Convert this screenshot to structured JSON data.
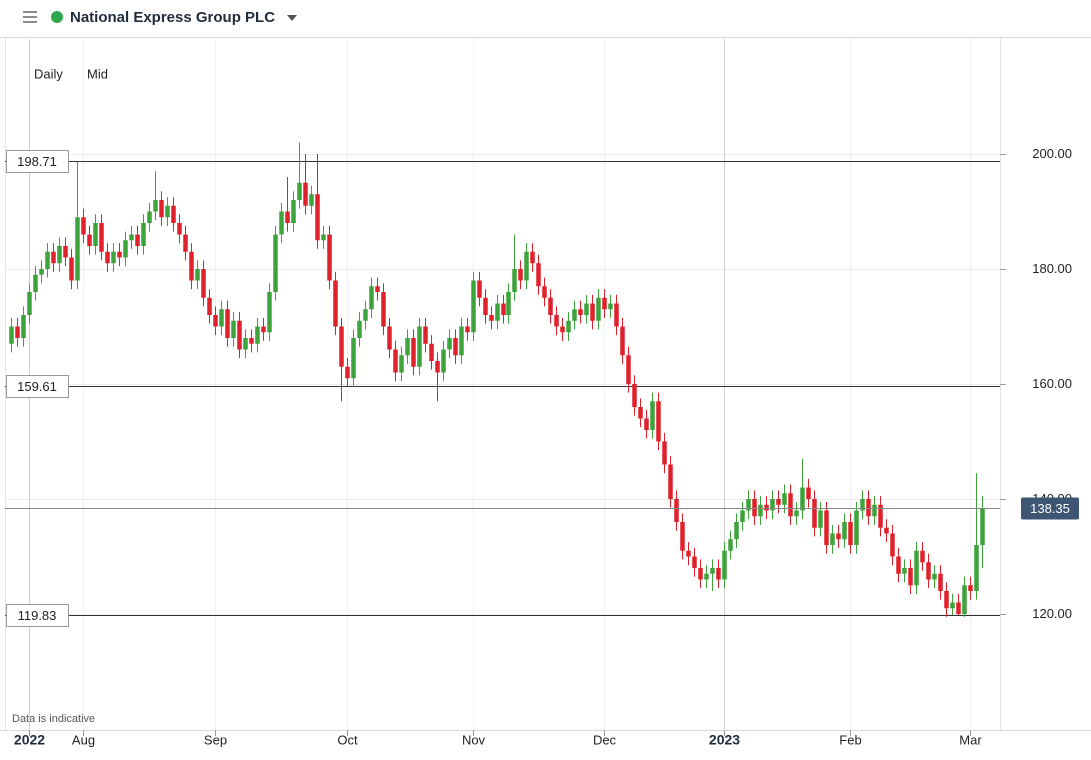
{
  "header": {
    "title": "National Express Group PLC",
    "interval": "Daily",
    "price_type": "Mid"
  },
  "footnote": "Data is indicative",
  "chart_data": {
    "type": "candlestick",
    "categories": [
      null,
      null,
      null,
      null,
      null,
      null,
      null,
      null,
      null,
      null,
      null,
      null,
      null,
      null,
      null,
      null,
      null,
      null,
      null,
      null,
      null,
      null,
      null,
      null,
      null,
      null,
      null,
      null,
      null,
      null,
      null,
      null,
      null,
      null,
      null,
      null,
      null,
      null,
      null,
      null,
      null,
      null,
      null,
      null,
      null,
      null,
      null,
      null,
      null,
      null,
      null,
      null,
      null,
      null,
      null,
      null,
      null,
      null,
      null,
      null,
      null,
      null,
      null,
      null,
      null,
      null,
      null,
      null,
      null,
      null,
      null,
      null,
      null,
      null,
      null,
      null,
      null,
      null,
      null,
      null,
      null,
      null,
      null,
      null,
      null,
      null,
      null,
      null,
      null,
      null,
      null,
      null,
      null,
      null,
      null,
      null,
      null,
      null,
      null,
      null,
      null,
      null,
      null,
      null,
      null,
      null,
      null,
      null,
      null,
      null,
      null,
      null,
      null,
      null,
      null,
      null,
      null,
      null,
      null,
      null,
      null,
      null,
      null,
      null,
      null,
      null,
      null,
      null,
      null,
      null,
      null,
      null,
      null,
      null,
      null,
      null,
      null,
      null,
      null,
      null,
      null,
      null,
      null,
      null,
      null,
      null,
      null,
      null,
      null,
      null,
      null,
      null,
      null,
      null,
      null,
      null,
      null,
      null,
      null,
      null,
      null,
      null,
      null
    ],
    "open": [
      167,
      170,
      168,
      172,
      176,
      179,
      180,
      183,
      181,
      184,
      182,
      178,
      189,
      186,
      184,
      188,
      183,
      181,
      183,
      182,
      185,
      186,
      184,
      188,
      190,
      192,
      189,
      191,
      188,
      186,
      183,
      178,
      180,
      175,
      172,
      170,
      173,
      168,
      171,
      166,
      168,
      167,
      170,
      169,
      176,
      186,
      190,
      188,
      192,
      195,
      191,
      193,
      185,
      186,
      178,
      170,
      163,
      161,
      168,
      171,
      173,
      177,
      176,
      170,
      166,
      162,
      165,
      168,
      163,
      170,
      167,
      164,
      162,
      166,
      168,
      165,
      170,
      169,
      178,
      175,
      172,
      171,
      174,
      172,
      176,
      180,
      178,
      183,
      181,
      177,
      175,
      172,
      170,
      169,
      171,
      173,
      172,
      174,
      171,
      175,
      173,
      174,
      170,
      165,
      160,
      156,
      154,
      152,
      157,
      150,
      146,
      140,
      136,
      131,
      130,
      128,
      126,
      127,
      128,
      126,
      131,
      133,
      136,
      138,
      140,
      137,
      139,
      138,
      140,
      139,
      141,
      137,
      138,
      142,
      140,
      135,
      138,
      132,
      134,
      133,
      136,
      132,
      138,
      140,
      137,
      139,
      135,
      134,
      130,
      127,
      128,
      125,
      131,
      129,
      126,
      127,
      124,
      121,
      122,
      120,
      125,
      124,
      132
    ],
    "high": [
      171.5,
      171.5,
      173.5,
      177.5,
      180.5,
      181.5,
      184.5,
      184.5,
      185.5,
      185.5,
      183.5,
      198.71,
      190.5,
      187.5,
      189.5,
      189.5,
      184.5,
      184.5,
      184.5,
      186.5,
      187.5,
      187.5,
      189.5,
      191.5,
      197,
      193.5,
      192.5,
      192.5,
      189.5,
      187.5,
      184.5,
      181.5,
      181.5,
      176.5,
      173.5,
      174.5,
      174.5,
      172.5,
      172.5,
      169.5,
      169.5,
      171.5,
      171.5,
      177.5,
      187.5,
      191.5,
      196,
      193.5,
      202,
      200,
      194.5,
      200,
      187.5,
      187.5,
      179.5,
      171.5,
      164.5,
      169.5,
      172.5,
      174.5,
      178.5,
      178.5,
      177.5,
      171.5,
      167.5,
      166.5,
      169.5,
      169.5,
      171.5,
      171.5,
      168.5,
      165.5,
      167.5,
      169.5,
      169.5,
      171.5,
      171.5,
      179.5,
      179.5,
      176.5,
      173.5,
      175.5,
      175.5,
      177.5,
      186,
      181.5,
      184.5,
      184.5,
      182.5,
      178.5,
      176.5,
      173.5,
      171.5,
      172.5,
      174.5,
      174.5,
      175.5,
      175.5,
      176.5,
      176.5,
      175.5,
      175.5,
      171.5,
      166.5,
      161.5,
      157.5,
      155.5,
      158.5,
      158.5,
      151.5,
      147.5,
      141.5,
      137.5,
      132.5,
      131.5,
      129.5,
      128.5,
      129.5,
      129.5,
      132.5,
      134.5,
      137.5,
      139.5,
      141.5,
      141.5,
      140.5,
      140.5,
      141.5,
      141.5,
      142.5,
      142.5,
      139.5,
      147,
      143.5,
      141.5,
      139.5,
      139.5,
      135.5,
      135.5,
      137.5,
      137.5,
      139.5,
      141.5,
      141.5,
      140.5,
      140.5,
      136.5,
      135.5,
      131.5,
      129.5,
      129.5,
      132.5,
      132.5,
      130.5,
      128.5,
      128.5,
      125.5,
      123.5,
      123.5,
      126.5,
      126.5,
      144.5,
      140.5
    ],
    "low": [
      165.5,
      166.5,
      166.5,
      170.5,
      174.5,
      177.5,
      178.5,
      179.5,
      179.5,
      180.5,
      176.5,
      176.5,
      184.5,
      182.5,
      182.5,
      181.5,
      179.5,
      179.5,
      180.5,
      180.5,
      183.5,
      182.5,
      182.5,
      186.5,
      188.5,
      187.5,
      187.5,
      186.5,
      184.5,
      181.5,
      176.5,
      176.5,
      173.5,
      170.5,
      168.5,
      168.5,
      166.5,
      166.5,
      164.5,
      164.5,
      165.5,
      165.5,
      167.5,
      167.5,
      174.5,
      184.5,
      186.5,
      186.5,
      190.5,
      189.5,
      189.5,
      183.5,
      183.5,
      176.5,
      168.5,
      157,
      159.5,
      159.5,
      166.5,
      169.5,
      171.5,
      174.5,
      168.5,
      164.5,
      160.5,
      160.5,
      163.5,
      161.5,
      161.5,
      165.5,
      162.5,
      157,
      160.5,
      164.5,
      163.5,
      163.5,
      167.5,
      167.5,
      173.5,
      170.5,
      169.5,
      169.5,
      170.5,
      170.5,
      174.5,
      176.5,
      176.5,
      179.5,
      175.5,
      173.5,
      170.5,
      168.5,
      167.5,
      167.5,
      169.5,
      170.5,
      170.5,
      169.5,
      169.5,
      171.5,
      171.5,
      168.5,
      163.5,
      158.5,
      154.5,
      152.5,
      150.5,
      150.5,
      148.5,
      144.5,
      138.5,
      134.5,
      129.5,
      128.5,
      126.5,
      124.5,
      124.5,
      124,
      124.5,
      124.5,
      129.5,
      131.5,
      134.5,
      136.5,
      135.5,
      135.5,
      136.5,
      136.5,
      137.5,
      137.5,
      135.5,
      135.5,
      136.5,
      138.5,
      133.5,
      133.5,
      130.5,
      130.5,
      131.5,
      131.5,
      130.5,
      130.5,
      136.5,
      135.5,
      135.5,
      133.5,
      132.5,
      128.5,
      125.5,
      125.5,
      123.5,
      123.5,
      127.5,
      124.5,
      124.5,
      122.5,
      119.5,
      119.83,
      119.83,
      119.5,
      122.5,
      122.5,
      128
    ],
    "close": [
      170,
      168,
      172,
      176,
      179,
      180,
      183,
      181,
      184,
      182,
      178,
      189,
      186,
      184,
      188,
      183,
      181,
      183,
      182,
      185,
      186,
      184,
      188,
      190,
      192,
      189,
      191,
      188,
      186,
      183,
      178,
      180,
      175,
      172,
      170,
      173,
      168,
      171,
      166,
      168,
      167,
      170,
      169,
      176,
      186,
      190,
      188,
      192,
      195,
      191,
      193,
      185,
      186,
      178,
      170,
      163,
      161,
      168,
      171,
      173,
      177,
      176,
      170,
      166,
      162,
      165,
      168,
      163,
      170,
      167,
      164,
      162,
      166,
      168,
      165,
      170,
      169,
      178,
      175,
      172,
      171,
      174,
      172,
      176,
      180,
      178,
      183,
      181,
      177,
      175,
      172,
      170,
      169,
      171,
      173,
      172,
      174,
      171,
      175,
      173,
      174,
      170,
      165,
      160,
      156,
      154,
      152,
      157,
      150,
      146,
      140,
      136,
      131,
      130,
      128,
      126,
      127,
      128,
      126,
      131,
      133,
      136,
      138,
      140,
      137,
      139,
      138,
      140,
      139,
      141,
      137,
      138,
      142,
      140,
      135,
      138,
      132,
      134,
      133,
      136,
      132,
      138,
      140,
      137,
      139,
      135,
      134,
      130,
      127,
      128,
      125,
      131,
      129,
      126,
      127,
      124,
      121,
      122,
      120,
      125,
      124,
      132,
      138.35
    ],
    "up_color": "#3da33b",
    "down_color": "#e0202a",
    "xlim": [
      -1,
      165
    ],
    "xticks": [
      {
        "value": 3,
        "label": "2022"
      },
      {
        "value": 12,
        "label": "Aug"
      },
      {
        "value": 34,
        "label": "Sep"
      },
      {
        "value": 56,
        "label": "Oct"
      },
      {
        "value": 77,
        "label": "Nov"
      },
      {
        "value": 99,
        "label": "Dec"
      },
      {
        "value": 119,
        "label": "2023"
      },
      {
        "value": 140,
        "label": "Feb"
      },
      {
        "value": 160,
        "label": "Mar"
      }
    ],
    "ylim": [
      100,
      220
    ],
    "yticks": [
      {
        "value": 120,
        "label": "120.00"
      },
      {
        "value": 140,
        "label": "140.00"
      },
      {
        "value": 160,
        "label": "160.00"
      },
      {
        "value": 180,
        "label": "180.00"
      },
      {
        "value": 200,
        "label": "200.00"
      }
    ],
    "levels": [
      198.71,
      159.61,
      119.83
    ],
    "last_price": 138.35,
    "grid": true
  }
}
